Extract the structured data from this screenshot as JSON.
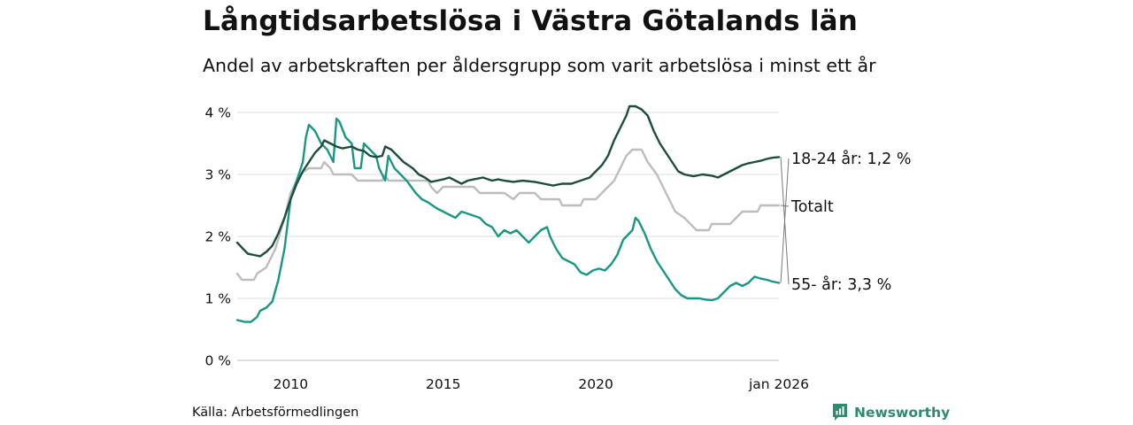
{
  "title": "Långtidsarbetslösa i Västra Götalands län",
  "subtitle": "Andel av arbetskraften per åldersgrupp som varit arbetslösa i minst ett år",
  "source": "Källa: Arbetsförmedlingen",
  "brand": {
    "name": "Newsworthy",
    "icon": "newsworthy-logo-icon",
    "color": "#2e8b6e"
  },
  "chart_data": {
    "type": "line",
    "title": "Långtidsarbetslösa i Västra Götalands län",
    "subtitle": "Andel av arbetskraften per åldersgrupp som varit arbetslösa i minst ett år",
    "xlabel": "",
    "ylabel": "",
    "xlim": [
      2008.25,
      2026.0
    ],
    "ylim": [
      0,
      4
    ],
    "grid": true,
    "y_ticks": [
      0,
      1,
      2,
      3,
      4
    ],
    "y_tick_labels": [
      "0 %",
      "1 %",
      "2 %",
      "3 %",
      "4 %"
    ],
    "x_ticks": [
      2010,
      2015,
      2020,
      2026.0
    ],
    "x_tick_labels": [
      "2010",
      "2015",
      "2020",
      "jan 2026"
    ],
    "series": [
      {
        "name": "Totalt",
        "end_label": "Totalt",
        "color": "#bdbdbd",
        "points": [
          [
            2008.25,
            1.4
          ],
          [
            2008.4,
            1.3
          ],
          [
            2008.8,
            1.3
          ],
          [
            2008.9,
            1.4
          ],
          [
            2009.2,
            1.5
          ],
          [
            2009.5,
            1.8
          ],
          [
            2009.8,
            2.3
          ],
          [
            2010.0,
            2.7
          ],
          [
            2010.3,
            3.0
          ],
          [
            2010.6,
            3.1
          ],
          [
            2011.0,
            3.1
          ],
          [
            2011.1,
            3.2
          ],
          [
            2011.3,
            3.1
          ],
          [
            2011.4,
            3.0
          ],
          [
            2012.0,
            3.0
          ],
          [
            2012.2,
            2.9
          ],
          [
            2013.0,
            2.9
          ],
          [
            2013.1,
            3.0
          ],
          [
            2013.2,
            2.9
          ],
          [
            2014.5,
            2.9
          ],
          [
            2014.6,
            2.8
          ],
          [
            2014.8,
            2.7
          ],
          [
            2015.0,
            2.8
          ],
          [
            2016.0,
            2.8
          ],
          [
            2016.2,
            2.7
          ],
          [
            2017.0,
            2.7
          ],
          [
            2017.3,
            2.6
          ],
          [
            2017.5,
            2.7
          ],
          [
            2018.0,
            2.7
          ],
          [
            2018.2,
            2.6
          ],
          [
            2018.8,
            2.6
          ],
          [
            2018.9,
            2.5
          ],
          [
            2019.5,
            2.5
          ],
          [
            2019.6,
            2.6
          ],
          [
            2020.0,
            2.6
          ],
          [
            2020.2,
            2.7
          ],
          [
            2020.4,
            2.8
          ],
          [
            2020.6,
            2.9
          ],
          [
            2020.8,
            3.1
          ],
          [
            2021.0,
            3.3
          ],
          [
            2021.2,
            3.4
          ],
          [
            2021.5,
            3.4
          ],
          [
            2021.7,
            3.2
          ],
          [
            2022.0,
            3.0
          ],
          [
            2022.3,
            2.7
          ],
          [
            2022.6,
            2.4
          ],
          [
            2022.9,
            2.3
          ],
          [
            2023.1,
            2.2
          ],
          [
            2023.3,
            2.1
          ],
          [
            2023.7,
            2.1
          ],
          [
            2023.8,
            2.2
          ],
          [
            2024.4,
            2.2
          ],
          [
            2024.6,
            2.3
          ],
          [
            2024.8,
            2.4
          ],
          [
            2025.3,
            2.4
          ],
          [
            2025.4,
            2.5
          ],
          [
            2026.0,
            2.5
          ]
        ]
      },
      {
        "name": "18-24 år",
        "end_label": "18-24 år: 1,2 %",
        "color": "#1a9784",
        "points": [
          [
            2008.25,
            0.65
          ],
          [
            2008.5,
            0.62
          ],
          [
            2008.7,
            0.62
          ],
          [
            2008.9,
            0.7
          ],
          [
            2009.0,
            0.8
          ],
          [
            2009.2,
            0.85
          ],
          [
            2009.4,
            0.95
          ],
          [
            2009.6,
            1.3
          ],
          [
            2009.8,
            1.8
          ],
          [
            2010.0,
            2.6
          ],
          [
            2010.2,
            2.9
          ],
          [
            2010.4,
            3.2
          ],
          [
            2010.5,
            3.6
          ],
          [
            2010.6,
            3.8
          ],
          [
            2010.8,
            3.7
          ],
          [
            2011.0,
            3.5
          ],
          [
            2011.2,
            3.4
          ],
          [
            2011.4,
            3.2
          ],
          [
            2011.5,
            3.9
          ],
          [
            2011.6,
            3.85
          ],
          [
            2011.8,
            3.6
          ],
          [
            2012.0,
            3.5
          ],
          [
            2012.1,
            3.1
          ],
          [
            2012.3,
            3.1
          ],
          [
            2012.4,
            3.5
          ],
          [
            2012.6,
            3.4
          ],
          [
            2012.8,
            3.3
          ],
          [
            2012.9,
            3.1
          ],
          [
            2013.1,
            2.9
          ],
          [
            2013.2,
            3.3
          ],
          [
            2013.4,
            3.1
          ],
          [
            2013.6,
            3.0
          ],
          [
            2013.8,
            2.9
          ],
          [
            2014.1,
            2.7
          ],
          [
            2014.3,
            2.6
          ],
          [
            2014.5,
            2.55
          ],
          [
            2014.8,
            2.45
          ],
          [
            2015.0,
            2.4
          ],
          [
            2015.2,
            2.35
          ],
          [
            2015.4,
            2.3
          ],
          [
            2015.6,
            2.4
          ],
          [
            2015.9,
            2.35
          ],
          [
            2016.2,
            2.3
          ],
          [
            2016.4,
            2.2
          ],
          [
            2016.6,
            2.15
          ],
          [
            2016.8,
            2.0
          ],
          [
            2017.0,
            2.1
          ],
          [
            2017.2,
            2.05
          ],
          [
            2017.4,
            2.1
          ],
          [
            2017.6,
            2.0
          ],
          [
            2017.8,
            1.9
          ],
          [
            2018.0,
            2.0
          ],
          [
            2018.2,
            2.1
          ],
          [
            2018.4,
            2.15
          ],
          [
            2018.5,
            2.0
          ],
          [
            2018.7,
            1.8
          ],
          [
            2018.9,
            1.65
          ],
          [
            2019.1,
            1.6
          ],
          [
            2019.3,
            1.55
          ],
          [
            2019.5,
            1.42
          ],
          [
            2019.7,
            1.38
          ],
          [
            2019.9,
            1.45
          ],
          [
            2020.1,
            1.48
          ],
          [
            2020.3,
            1.45
          ],
          [
            2020.5,
            1.55
          ],
          [
            2020.7,
            1.7
          ],
          [
            2020.9,
            1.95
          ],
          [
            2021.0,
            2.0
          ],
          [
            2021.2,
            2.1
          ],
          [
            2021.3,
            2.3
          ],
          [
            2021.4,
            2.25
          ],
          [
            2021.6,
            2.05
          ],
          [
            2021.8,
            1.8
          ],
          [
            2022.0,
            1.6
          ],
          [
            2022.2,
            1.45
          ],
          [
            2022.4,
            1.3
          ],
          [
            2022.6,
            1.15
          ],
          [
            2022.8,
            1.05
          ],
          [
            2023.0,
            1.0
          ],
          [
            2023.2,
            1.0
          ],
          [
            2023.4,
            1.0
          ],
          [
            2023.6,
            0.98
          ],
          [
            2023.8,
            0.97
          ],
          [
            2024.0,
            1.0
          ],
          [
            2024.2,
            1.1
          ],
          [
            2024.4,
            1.2
          ],
          [
            2024.6,
            1.25
          ],
          [
            2024.8,
            1.2
          ],
          [
            2025.0,
            1.25
          ],
          [
            2025.2,
            1.35
          ],
          [
            2025.4,
            1.32
          ],
          [
            2025.6,
            1.3
          ],
          [
            2025.8,
            1.27
          ],
          [
            2026.0,
            1.25
          ]
        ]
      },
      {
        "name": "55- år",
        "end_label": "55- år: 3,3 %",
        "color": "#1e4d40",
        "points": [
          [
            2008.25,
            1.9
          ],
          [
            2008.4,
            1.82
          ],
          [
            2008.6,
            1.72
          ],
          [
            2008.8,
            1.7
          ],
          [
            2009.0,
            1.68
          ],
          [
            2009.2,
            1.75
          ],
          [
            2009.4,
            1.85
          ],
          [
            2009.6,
            2.05
          ],
          [
            2009.8,
            2.3
          ],
          [
            2010.0,
            2.6
          ],
          [
            2010.2,
            2.85
          ],
          [
            2010.4,
            3.05
          ],
          [
            2010.6,
            3.2
          ],
          [
            2010.8,
            3.35
          ],
          [
            2011.0,
            3.45
          ],
          [
            2011.1,
            3.55
          ],
          [
            2011.3,
            3.5
          ],
          [
            2011.5,
            3.45
          ],
          [
            2011.7,
            3.42
          ],
          [
            2012.0,
            3.45
          ],
          [
            2012.2,
            3.4
          ],
          [
            2012.4,
            3.38
          ],
          [
            2012.6,
            3.3
          ],
          [
            2012.8,
            3.28
          ],
          [
            2013.0,
            3.3
          ],
          [
            2013.1,
            3.45
          ],
          [
            2013.3,
            3.4
          ],
          [
            2013.5,
            3.3
          ],
          [
            2013.7,
            3.2
          ],
          [
            2014.0,
            3.1
          ],
          [
            2014.2,
            3.0
          ],
          [
            2014.4,
            2.95
          ],
          [
            2014.6,
            2.88
          ],
          [
            2014.8,
            2.9
          ],
          [
            2015.0,
            2.92
          ],
          [
            2015.2,
            2.95
          ],
          [
            2015.4,
            2.9
          ],
          [
            2015.6,
            2.85
          ],
          [
            2015.8,
            2.9
          ],
          [
            2016.0,
            2.92
          ],
          [
            2016.3,
            2.95
          ],
          [
            2016.6,
            2.9
          ],
          [
            2016.8,
            2.92
          ],
          [
            2017.0,
            2.9
          ],
          [
            2017.3,
            2.88
          ],
          [
            2017.6,
            2.9
          ],
          [
            2018.0,
            2.88
          ],
          [
            2018.3,
            2.85
          ],
          [
            2018.6,
            2.82
          ],
          [
            2018.9,
            2.85
          ],
          [
            2019.2,
            2.85
          ],
          [
            2019.5,
            2.9
          ],
          [
            2019.8,
            2.95
          ],
          [
            2020.0,
            3.05
          ],
          [
            2020.2,
            3.15
          ],
          [
            2020.4,
            3.3
          ],
          [
            2020.6,
            3.55
          ],
          [
            2020.8,
            3.75
          ],
          [
            2021.0,
            3.95
          ],
          [
            2021.1,
            4.1
          ],
          [
            2021.3,
            4.1
          ],
          [
            2021.5,
            4.05
          ],
          [
            2021.7,
            3.95
          ],
          [
            2021.9,
            3.7
          ],
          [
            2022.1,
            3.5
          ],
          [
            2022.3,
            3.35
          ],
          [
            2022.5,
            3.2
          ],
          [
            2022.7,
            3.05
          ],
          [
            2022.9,
            3.0
          ],
          [
            2023.2,
            2.97
          ],
          [
            2023.5,
            3.0
          ],
          [
            2023.8,
            2.98
          ],
          [
            2024.0,
            2.95
          ],
          [
            2024.2,
            3.0
          ],
          [
            2024.4,
            3.05
          ],
          [
            2024.6,
            3.1
          ],
          [
            2024.8,
            3.15
          ],
          [
            2025.0,
            3.18
          ],
          [
            2025.2,
            3.2
          ],
          [
            2025.4,
            3.22
          ],
          [
            2025.6,
            3.25
          ],
          [
            2025.8,
            3.27
          ],
          [
            2026.0,
            3.28
          ]
        ]
      }
    ]
  }
}
